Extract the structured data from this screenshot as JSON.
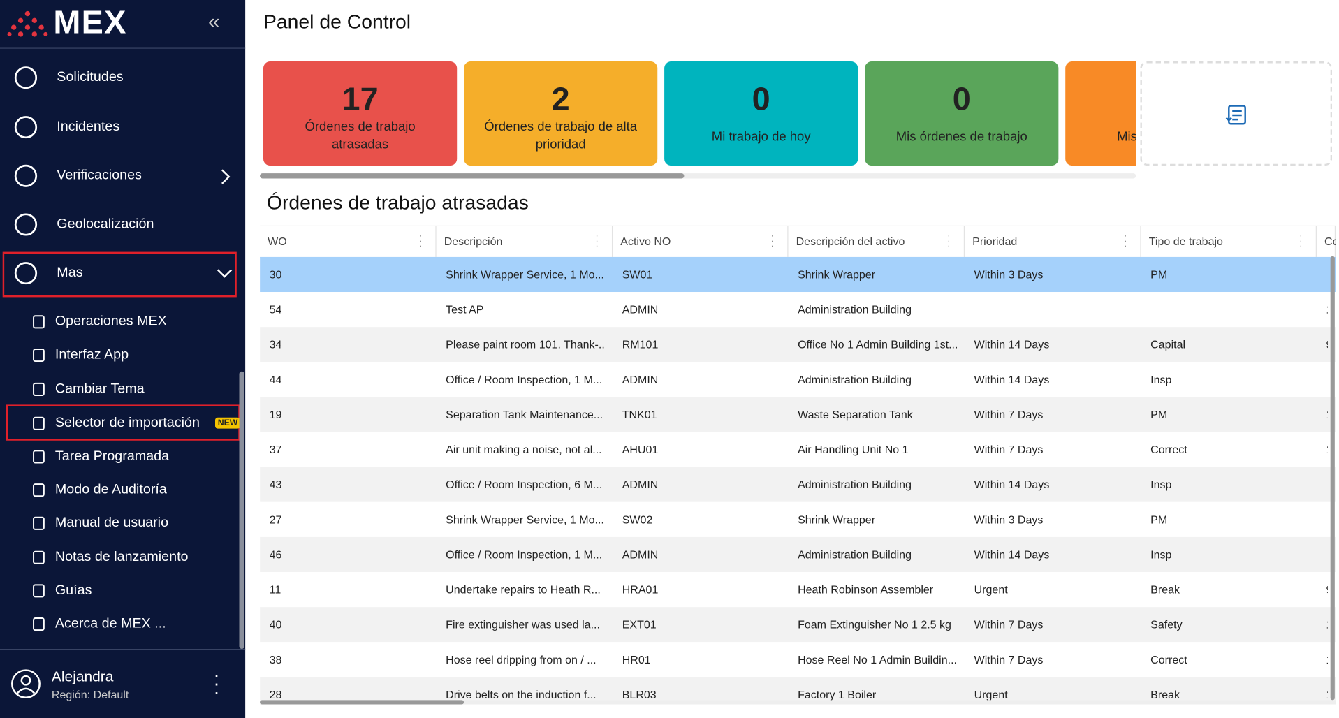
{
  "sidebar": {
    "logo": "MEX",
    "nav": [
      "Solicitudes",
      "Incidentes",
      "Verificaciones",
      "Geolocalización",
      "Mas"
    ],
    "submenu": [
      "Operaciones MEX",
      "Interfaz App",
      "Cambiar Tema",
      "Selector de importación",
      "Tarea Programada",
      "Modo de Auditoría",
      "Manual de usuario",
      "Notas de lanzamiento",
      "Guías",
      "Acerca de MEX ..."
    ],
    "badge": "NEW",
    "user": {
      "name": "Alejandra",
      "region": "Región: Default"
    }
  },
  "header": {
    "title": "Panel de Control"
  },
  "cards": [
    {
      "value": "17",
      "label": "Órdenes de trabajo atrasadas"
    },
    {
      "value": "2",
      "label": "Órdenes de trabajo de alta prioridad"
    },
    {
      "value": "0",
      "label": "Mi trabajo de hoy"
    },
    {
      "value": "0",
      "label": "Mis órdenes de trabajo"
    },
    {
      "value": "",
      "label": "Mis"
    }
  ],
  "section": {
    "title": "Órdenes de trabajo atrasadas"
  },
  "table": {
    "columns": [
      "WO",
      "Descripción",
      "Activo NO",
      "Descripción del activo",
      "Prioridad",
      "Tipo de trabajo",
      "Co"
    ],
    "rows": [
      [
        "30",
        "Shrink Wrapper Service, 1 Mo...",
        "SW01",
        "Shrink Wrapper",
        "Within 3 Days",
        "PM",
        ""
      ],
      [
        "54",
        "Test AP",
        "ADMIN",
        "Administration Building",
        "",
        "",
        "1"
      ],
      [
        "34",
        "Please paint room 101. Thank-...",
        "RM101",
        "Office No 1 Admin Building 1st...",
        "Within 14 Days",
        "Capital",
        "9"
      ],
      [
        "44",
        "Office / Room Inspection, 1 M...",
        "ADMIN",
        "Administration Building",
        "Within 14 Days",
        "Insp",
        ""
      ],
      [
        "19",
        "Separation Tank Maintenance...",
        "TNK01",
        "Waste Separation Tank",
        "Within 7 Days",
        "PM",
        "1"
      ],
      [
        "37",
        "Air unit making a noise, not al...",
        "AHU01",
        "Air Handling Unit No 1",
        "Within 7 Days",
        "Correct",
        "1"
      ],
      [
        "43",
        "Office / Room Inspection, 6 M...",
        "ADMIN",
        "Administration Building",
        "Within 14 Days",
        "Insp",
        ""
      ],
      [
        "27",
        "Shrink Wrapper Service, 1 Mo...",
        "SW02",
        "Shrink Wrapper",
        "Within 3 Days",
        "PM",
        ""
      ],
      [
        "46",
        "Office / Room Inspection, 1 M...",
        "ADMIN",
        "Administration Building",
        "Within 14 Days",
        "Insp",
        ""
      ],
      [
        "11",
        "Undertake repairs to Heath R...",
        "HRA01",
        "Heath Robinson Assembler",
        "Urgent",
        "Break",
        "9"
      ],
      [
        "40",
        "Fire extinguisher was used la...",
        "EXT01",
        "Foam Extinguisher No 1 2.5 kg",
        "Within 7 Days",
        "Safety",
        "1"
      ],
      [
        "38",
        "Hose reel dripping from on / ...",
        "HR01",
        "Hose Reel No 1 Admin Buildin...",
        "Within 7 Days",
        "Correct",
        "1"
      ],
      [
        "28",
        "Drive belts on the induction f...",
        "BLR03",
        "Factory 1 Boiler",
        "Urgent",
        "Break",
        "1"
      ]
    ]
  }
}
